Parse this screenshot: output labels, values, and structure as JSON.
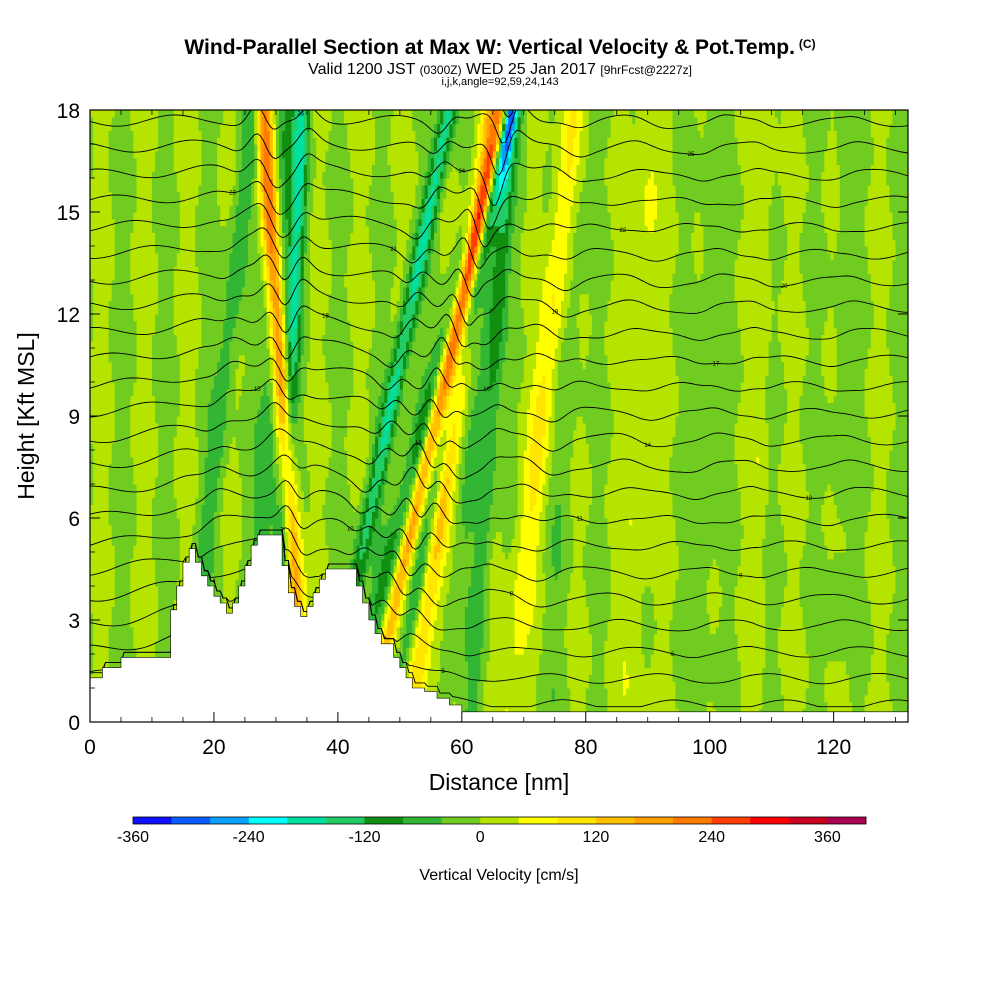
{
  "title": {
    "main": "Wind-Parallel Section at Max W: Vertical Velocity & Pot.Temp.",
    "copyright": "(C)",
    "valid_prefix": "Valid 1200 JST",
    "valid_utc": "(0300Z)",
    "valid_date": "WED 25 Jan 2017",
    "forecast": "[9hrFcst@2227z]",
    "indices": "i,j,k,angle=92,59,24,143"
  },
  "chart_data": {
    "type": "heatmap",
    "xlabel": "Distance [nm]",
    "ylabel": "Height [Kft MSL]",
    "xlim": [
      0,
      132
    ],
    "ylim": [
      0,
      18
    ],
    "x_ticks": [
      0,
      20,
      40,
      60,
      80,
      100,
      120
    ],
    "x_tick_labels": [
      "0",
      "20",
      "40",
      "60",
      "80",
      "100",
      "120"
    ],
    "y_ticks": [
      0,
      3,
      6,
      9,
      12,
      15,
      18
    ],
    "y_tick_labels": [
      "0",
      "3",
      "6",
      "9",
      "12",
      "15",
      "18"
    ],
    "colorbar": {
      "title": "Vertical Velocity [cm/s]",
      "min": -360,
      "max": 400,
      "step": 40,
      "tick_values": [
        -360,
        -240,
        -120,
        0,
        120,
        240,
        360
      ],
      "tick_labels": [
        "-360",
        "-240",
        "-120",
        "0",
        "120",
        "240",
        "360"
      ],
      "colors": [
        "#1010ff",
        "#0a5cff",
        "#0aa0ff",
        "#00ffff",
        "#00e0a0",
        "#22cc66",
        "#118f11",
        "#33b633",
        "#70cc20",
        "#b4e400",
        "#ffff00",
        "#ffe600",
        "#ffc000",
        "#ffa000",
        "#ff7a00",
        "#ff4000",
        "#ff0000",
        "#cc0020",
        "#aa0050",
        "#800060",
        "#600090"
      ]
    },
    "terrain_profile": {
      "x": [
        0,
        2,
        2,
        5,
        5,
        8,
        8,
        13,
        13,
        14,
        14,
        15,
        15,
        16,
        16,
        17,
        17,
        18,
        18,
        19,
        19,
        20,
        20,
        21,
        21,
        22,
        22,
        23,
        23,
        24,
        24,
        25,
        25,
        26,
        26,
        27,
        27,
        28,
        28,
        31,
        31,
        32,
        32,
        33,
        33,
        34,
        34,
        35,
        35,
        36,
        36,
        37,
        37,
        38,
        38,
        43,
        43,
        44,
        44,
        45,
        45,
        46,
        46,
        47,
        47,
        48,
        48,
        49,
        49,
        50,
        50,
        51,
        51,
        52,
        52,
        54,
        54,
        56,
        56,
        58,
        58,
        60,
        60,
        62,
        62,
        132
      ],
      "y": [
        1.3,
        1.3,
        1.6,
        1.6,
        1.9,
        1.9,
        1.9,
        1.9,
        3.3,
        3.3,
        4.0,
        4.0,
        4.7,
        4.7,
        5.1,
        5.1,
        4.7,
        4.7,
        4.3,
        4.3,
        4.0,
        4.0,
        3.7,
        3.7,
        3.5,
        3.5,
        3.2,
        3.2,
        3.5,
        3.5,
        4.0,
        4.0,
        4.6,
        4.6,
        5.2,
        5.2,
        5.5,
        5.5,
        5.5,
        5.5,
        4.6,
        4.6,
        3.8,
        3.8,
        3.4,
        3.4,
        3.1,
        3.1,
        3.4,
        3.4,
        3.8,
        3.8,
        4.2,
        4.2,
        4.5,
        4.5,
        4.0,
        4.0,
        3.5,
        3.5,
        3.0,
        3.0,
        2.6,
        2.6,
        2.3,
        2.3,
        2.3,
        2.3,
        1.9,
        1.9,
        1.6,
        1.6,
        1.3,
        1.3,
        1.0,
        1.0,
        0.9,
        0.9,
        0.7,
        0.7,
        0.5,
        0.5,
        0.3,
        0.3,
        0.3,
        0.3
      ]
    },
    "wave_bands": [
      {
        "x0": 15.5,
        "tilt": 0.1,
        "half_width": 1.6,
        "w": -70
      },
      {
        "x0": 26.5,
        "tilt": 0.05,
        "half_width": 2.2,
        "w": -80
      },
      {
        "x0": 30.0,
        "tilt": 0.04,
        "half_width": 1.3,
        "w": -150
      },
      {
        "x0": 34.5,
        "tilt": -0.06,
        "half_width": 1.4,
        "w": 250
      },
      {
        "x0": 38.5,
        "tilt": 0.18,
        "half_width": 1.4,
        "w": -170
      },
      {
        "x0": 41.5,
        "tilt": 0.24,
        "half_width": 2.0,
        "w": -110
      },
      {
        "x0": 45.0,
        "tilt": 0.2,
        "half_width": 1.2,
        "w": 230
      },
      {
        "x0": 48.5,
        "tilt": 0.18,
        "half_width": 1.2,
        "w": -120
      },
      {
        "x0": 52.0,
        "tilt": 0.12,
        "half_width": 1.7,
        "w": 170
      },
      {
        "x0": 57.0,
        "tilt": 0.1,
        "half_width": 1.8,
        "w": -45
      },
      {
        "x0": 61.5,
        "tilt": 0.06,
        "half_width": 1.4,
        "w": -90
      },
      {
        "x0": 67.5,
        "tilt": 0.1,
        "half_width": 2.0,
        "w": 90
      },
      {
        "x0": 74.0,
        "tilt": 0.05,
        "half_width": 1.8,
        "w": -35
      },
      {
        "x0": 87.0,
        "tilt": 0.03,
        "half_width": 2.2,
        "w": 45
      },
      {
        "x0": 98.5,
        "tilt": 0.02,
        "half_width": 1.6,
        "w": -35
      },
      {
        "x0": 107.0,
        "tilt": 0.02,
        "half_width": 1.4,
        "w": 30
      },
      {
        "x0": 120.0,
        "tilt": 0.02,
        "half_width": 1.6,
        "w": -25
      }
    ],
    "theta_contour_labels": [
      "4",
      "5",
      "6",
      "7",
      "8",
      "9",
      "10",
      "11",
      "12",
      "13",
      "14",
      "15",
      "16",
      "17",
      "18",
      "19",
      "20",
      "21",
      "22",
      "23",
      "24",
      "25",
      "26",
      "28"
    ]
  }
}
